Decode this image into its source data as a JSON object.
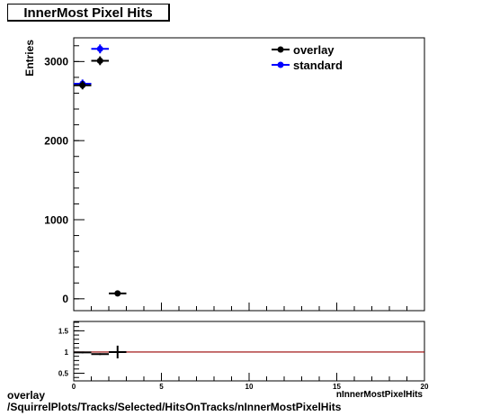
{
  "chart_data": [
    {
      "type": "scatter",
      "title": "InnerMost Pixel Hits",
      "ylabel": "Entries",
      "xlabel": "nInnerMostPixelHits",
      "xlim": [
        0,
        20
      ],
      "ylim": [
        -150,
        3300
      ],
      "y_ticks": [
        0,
        1000,
        2000,
        3000
      ],
      "legend_position": "top-right",
      "series": [
        {
          "name": "overlay",
          "color": "#000000",
          "x": [
            0.5,
            1.5,
            2.5
          ],
          "y": [
            2700,
            3010,
            68
          ],
          "yerr": [
            52,
            55,
            8
          ]
        },
        {
          "name": "standard",
          "color": "#0000ff",
          "x": [
            0.5,
            1.5
          ],
          "y": [
            2720,
            3160
          ],
          "yerr": [
            52,
            56
          ]
        }
      ]
    },
    {
      "type": "scatter",
      "xlim": [
        0,
        20
      ],
      "ylim": [
        0.32,
        1.72
      ],
      "y_ticks": [
        0.5,
        1,
        1.5
      ],
      "x_ticks": [
        0,
        5,
        10,
        15,
        20
      ],
      "reference_line": 1,
      "reference_color": "#990000",
      "series": [
        {
          "name": "ratio",
          "color": "#000000",
          "x": [
            0.5,
            1.5,
            2.5
          ],
          "y": [
            0.99,
            0.95,
            1.0
          ],
          "yerr": [
            0.02,
            0.02,
            0.15
          ]
        }
      ]
    }
  ],
  "footer": {
    "line1": "overlay",
    "line2": "/SquirrelPlots/Tracks/Selected/HitsOnTracks/nInnerMostPixelHits"
  }
}
